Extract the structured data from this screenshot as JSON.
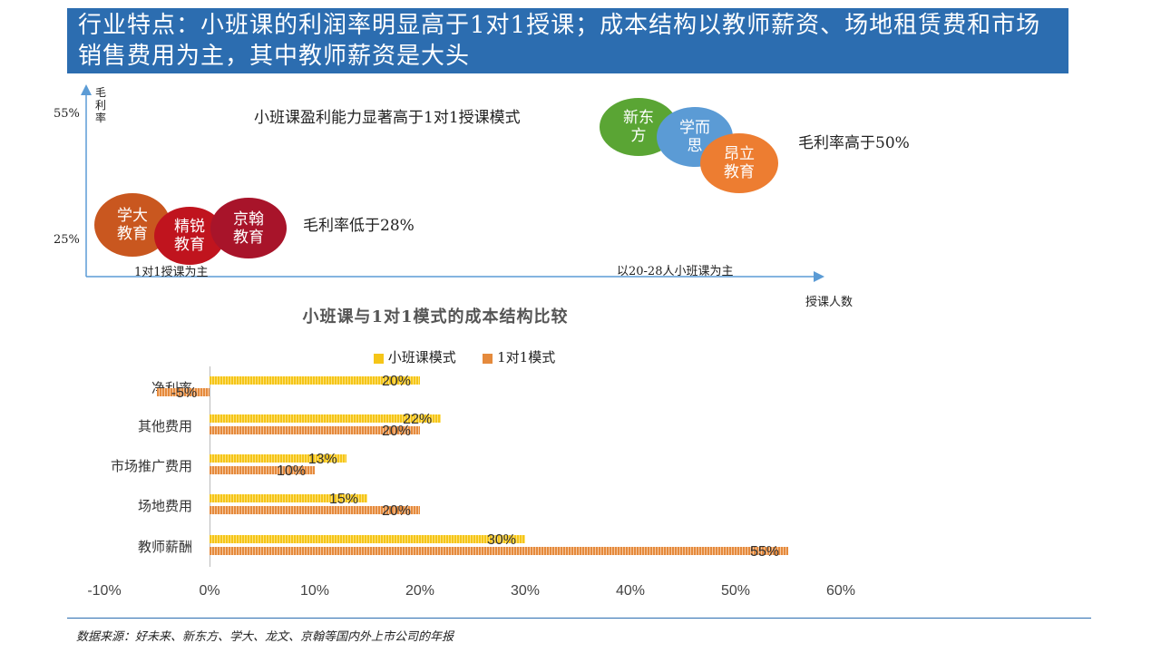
{
  "slide": {
    "title": "行业特点：小班课的利润率明显高于1对1授课；成本结构以教师薪资、场地租赁费和市场销售费用为主，其中教师薪资是大头",
    "source": "数据来源：好未来、新东方、学大、龙文、京翰等国内外上市公司的年报"
  },
  "chart_data": [
    {
      "type": "scatter",
      "ylabel": "毛利率",
      "xlabel": "授课人数",
      "yticks": [
        "55%",
        "25%"
      ],
      "annotations": {
        "top_text": "小班课盈利能力显著高于1对1授课模式",
        "high_margin": "毛利率高于50%",
        "low_margin": "毛利率低于28%",
        "x_left": "1对1授课为主",
        "x_right": "以20-28人小班课为主"
      },
      "points": [
        {
          "label": "学大\n教育",
          "group": "1对1授课为主",
          "color": "#c9571f"
        },
        {
          "label": "精锐\n教育",
          "group": "1对1授课为主",
          "color": "#c0141e"
        },
        {
          "label": "京翰\n教育",
          "group": "1对1授课为主",
          "color": "#a8142a"
        },
        {
          "label": "新东\n方",
          "group": "以20-28人小班课为主",
          "color": "#5aa534"
        },
        {
          "label": "学而\n思",
          "group": "以20-28人小班课为主",
          "color": "#5b9bd5"
        },
        {
          "label": "昂立\n教育",
          "group": "以20-28人小班课为主",
          "color": "#ed7d31"
        }
      ]
    },
    {
      "type": "bar",
      "orientation": "horizontal",
      "title": "小班课与1对1模式的成本结构比较",
      "categories": [
        "净利率",
        "其他费用",
        "市场推广费用",
        "场地费用",
        "教师薪酬"
      ],
      "series": [
        {
          "name": "小班课模式",
          "color": "#f5c518",
          "values": [
            20,
            22,
            13,
            15,
            30
          ]
        },
        {
          "name": "1对1模式",
          "color": "#e58a3c",
          "values": [
            -5,
            20,
            10,
            20,
            55
          ]
        }
      ],
      "xlim": [
        -10,
        60
      ],
      "xticks": [
        "-10%",
        "0%",
        "10%",
        "20%",
        "30%",
        "40%",
        "50%",
        "60%"
      ],
      "legend": "top-center",
      "grid": false
    }
  ]
}
